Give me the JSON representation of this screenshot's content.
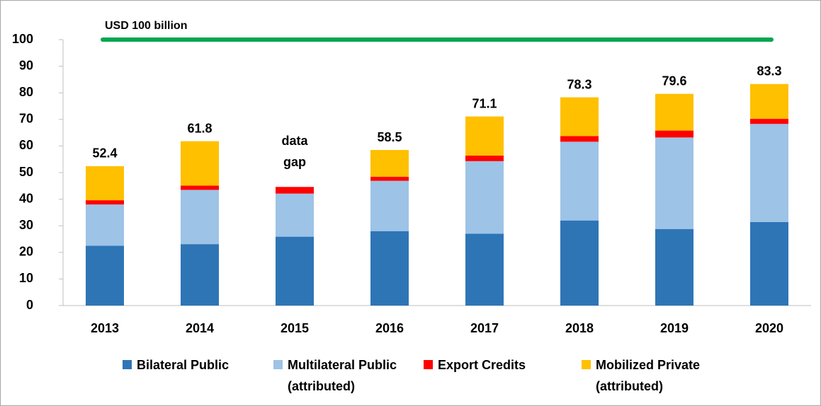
{
  "chart_data": {
    "type": "stacked_bar",
    "categories": [
      "2013",
      "2014",
      "2015",
      "2016",
      "2017",
      "2018",
      "2019",
      "2020"
    ],
    "series": [
      {
        "name": "Bilateral Public",
        "color": "#2e75b6",
        "values": [
          22.5,
          23.1,
          25.9,
          28.0,
          27.0,
          32.0,
          28.8,
          31.4
        ]
      },
      {
        "name": "Multilateral Public (attributed)",
        "color": "#9dc3e6",
        "values": [
          15.5,
          20.4,
          16.2,
          18.9,
          27.3,
          29.6,
          34.4,
          36.9
        ]
      },
      {
        "name": "Export Credits",
        "color": "#ff0000",
        "values": [
          1.6,
          1.6,
          2.5,
          1.5,
          2.1,
          2.1,
          2.6,
          1.9
        ]
      },
      {
        "name": "Mobilized Private (attributed)",
        "color": "#ffc000",
        "values": [
          12.8,
          16.7,
          null,
          10.1,
          14.7,
          14.6,
          13.8,
          13.1
        ]
      }
    ],
    "totals": [
      52.4,
      61.8,
      null,
      58.5,
      71.1,
      78.3,
      79.6,
      83.3
    ],
    "annotations": [
      {
        "text": "data gap",
        "category": "2015"
      }
    ],
    "reference_line": {
      "value": 100,
      "label": "USD 100 billion",
      "color": "#00a650"
    },
    "ylim": [
      0,
      100
    ],
    "yticks": [
      0,
      10,
      20,
      30,
      40,
      50,
      60,
      70,
      80,
      90,
      100
    ],
    "grid": false
  }
}
